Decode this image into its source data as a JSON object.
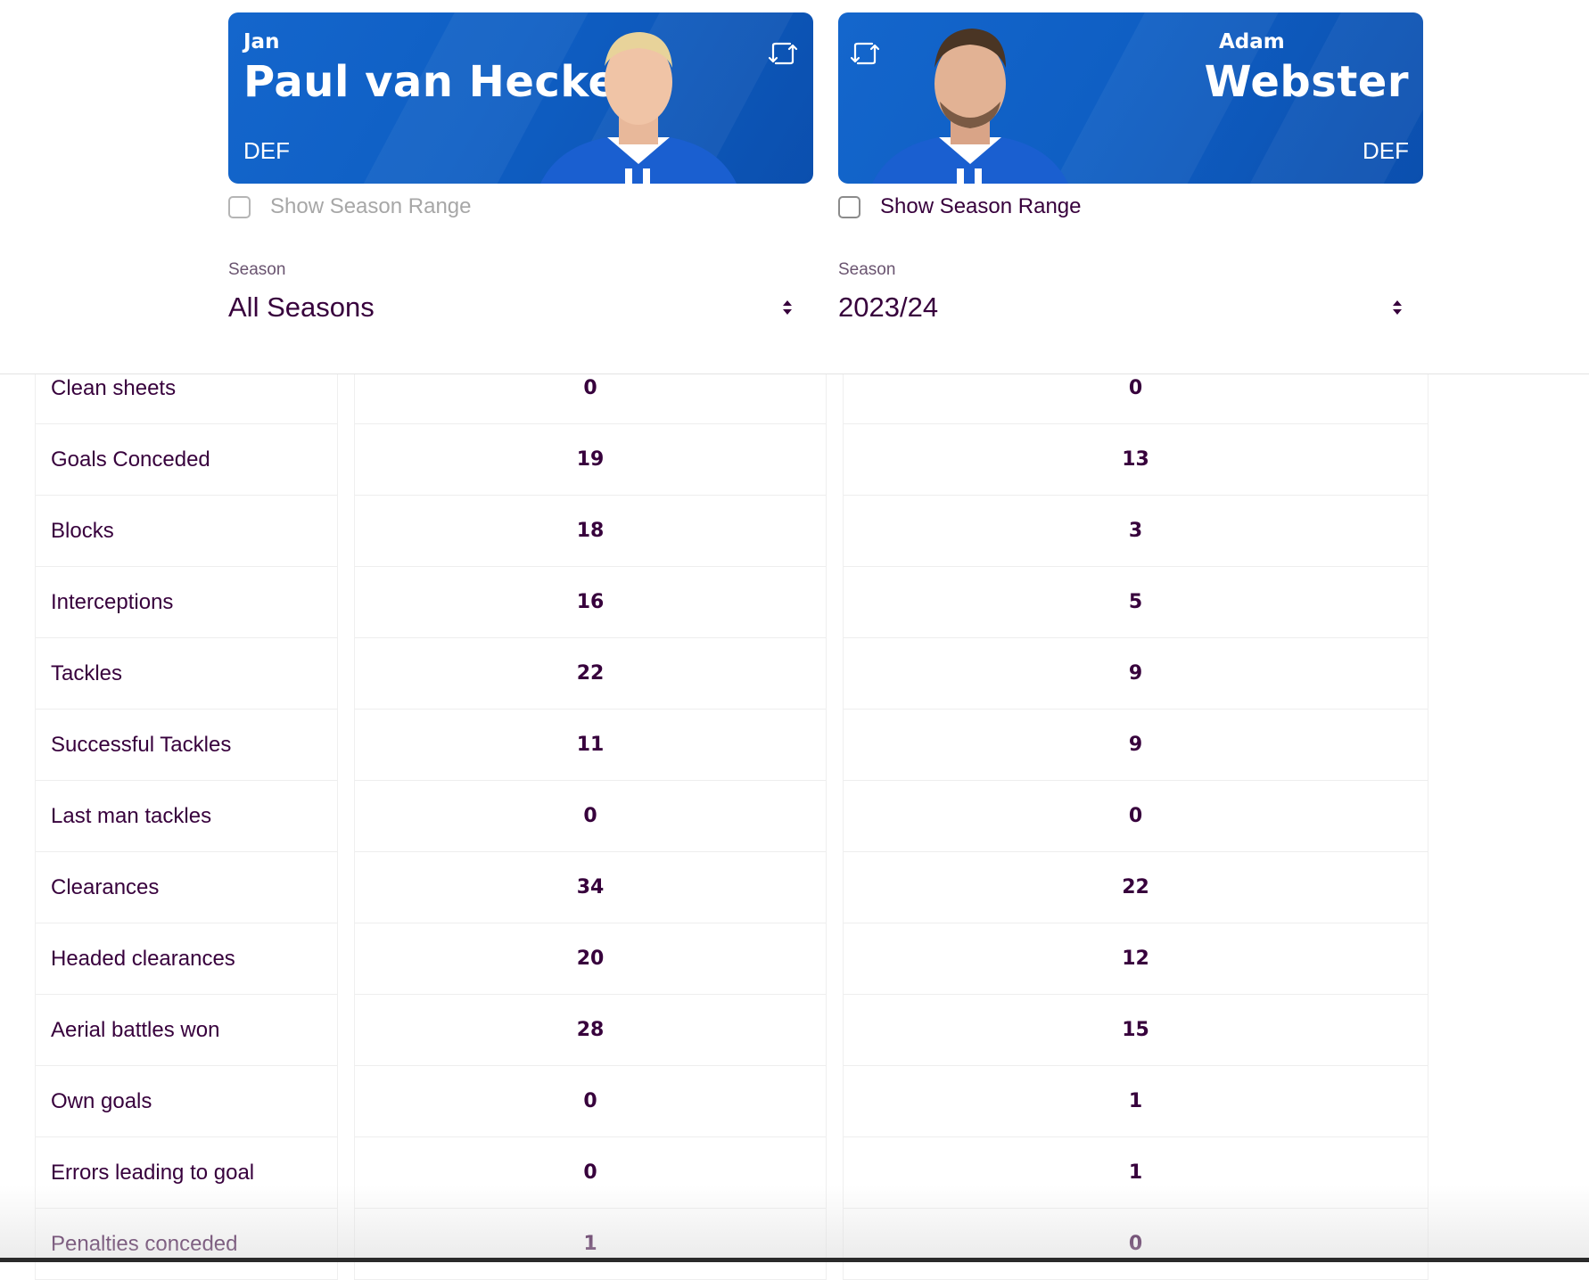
{
  "players": [
    {
      "first_name": "Jan",
      "last_name": "Paul van Hecke",
      "position": "DEF",
      "show_range_label": "Show Season Range",
      "season_label": "Season",
      "season_value": "All Seasons"
    },
    {
      "first_name": "Adam",
      "last_name": "Webster",
      "position": "DEF",
      "show_range_label": "Show Season Range",
      "season_label": "Season",
      "season_value": "2023/24"
    }
  ],
  "stats": [
    {
      "label": "Clean sheets",
      "p1": "0",
      "p2": "0"
    },
    {
      "label": "Goals Conceded",
      "p1": "19",
      "p2": "13"
    },
    {
      "label": "Blocks",
      "p1": "18",
      "p2": "3"
    },
    {
      "label": "Interceptions",
      "p1": "16",
      "p2": "5"
    },
    {
      "label": "Tackles",
      "p1": "22",
      "p2": "9"
    },
    {
      "label": "Successful Tackles",
      "p1": "11",
      "p2": "9"
    },
    {
      "label": "Last man tackles",
      "p1": "0",
      "p2": "0"
    },
    {
      "label": "Clearances",
      "p1": "34",
      "p2": "22"
    },
    {
      "label": "Headed clearances",
      "p1": "20",
      "p2": "12"
    },
    {
      "label": "Aerial battles won",
      "p1": "28",
      "p2": "15"
    },
    {
      "label": "Own goals",
      "p1": "0",
      "p2": "1"
    },
    {
      "label": "Errors leading to goal",
      "p1": "0",
      "p2": "1"
    },
    {
      "label": "Penalties conceded",
      "p1": "1",
      "p2": "0"
    }
  ],
  "icons": {
    "swap": "swap-icon",
    "sort": "sort-arrows-icon",
    "portrait": "player-photo"
  },
  "colors": {
    "card_blue": "#0f5fc4",
    "text_purple": "#37003c"
  }
}
